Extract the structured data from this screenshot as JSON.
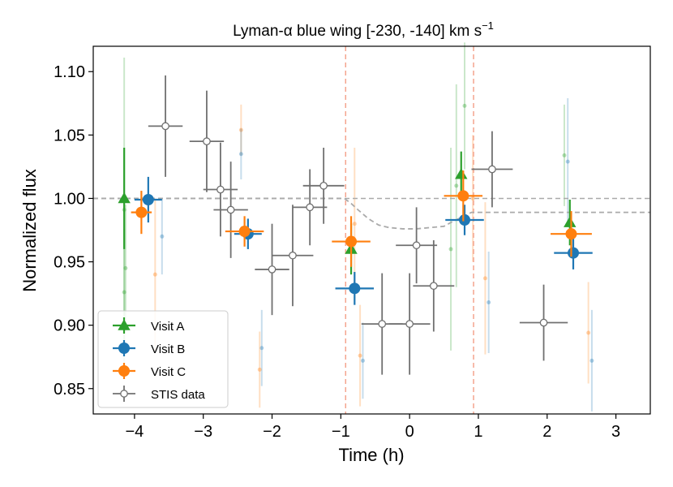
{
  "chart_data": {
    "type": "scatter",
    "title": "Lyman-α blue wing [-230, -140] km s",
    "title_superscript": "−1",
    "xlabel": "Time (h)",
    "ylabel": "Normalized flux",
    "xlim": [
      -4.6,
      3.5
    ],
    "ylim": [
      0.83,
      1.12
    ],
    "xticks": [
      -4,
      -3,
      -2,
      -1,
      0,
      1,
      2,
      3
    ],
    "xtick_labels": [
      "−4",
      "−3",
      "−2",
      "−1",
      "0",
      "1",
      "2",
      "3"
    ],
    "yticks": [
      0.85,
      0.9,
      0.95,
      1.0,
      1.05,
      1.1
    ],
    "ytick_labels": [
      "0.85",
      "0.90",
      "0.95",
      "1.00",
      "1.05",
      "1.10"
    ],
    "grid": false,
    "legend_position": "lower-left",
    "reference_line": {
      "y": 1.0,
      "style": "dashed",
      "color": "#aaaaaa"
    },
    "transit_markers": {
      "x": [
        -0.93,
        0.93
      ],
      "style": "dashed",
      "color": "#f4a48e"
    },
    "transit_model": {
      "color": "#aaaaaa",
      "x": [
        -4.6,
        -0.95,
        -0.85,
        -0.75,
        -0.6,
        -0.45,
        -0.3,
        -0.1,
        0.1,
        0.3,
        0.5,
        0.6,
        0.75,
        0.9,
        3.5
      ],
      "y": [
        1.0,
        1.0,
        0.996,
        0.991,
        0.984,
        0.979,
        0.977,
        0.976,
        0.976,
        0.977,
        0.978,
        0.981,
        0.985,
        0.989,
        0.989
      ]
    },
    "series": [
      {
        "name": "Visit A",
        "marker": "triangle",
        "color": "#2ca02c",
        "points": [
          {
            "x": -4.15,
            "y": 1.0,
            "yerr": 0.04,
            "xerr": 0.0
          },
          {
            "x": -0.85,
            "y": 0.96,
            "yerr": 0.02,
            "xerr": 0.0
          },
          {
            "x": 0.75,
            "y": 1.019,
            "yerr": 0.018,
            "xerr": 0.0
          },
          {
            "x": 2.33,
            "y": 0.981,
            "yerr": 0.018,
            "xerr": 0.0
          }
        ]
      },
      {
        "name": "Visit B",
        "marker": "circle",
        "color": "#1f77b4",
        "points": [
          {
            "x": -3.8,
            "y": 0.999,
            "yerr": 0.018,
            "xerr": 0.2
          },
          {
            "x": -2.35,
            "y": 0.972,
            "yerr": 0.012,
            "xerr": 0.2
          },
          {
            "x": -0.8,
            "y": 0.929,
            "yerr": 0.013,
            "xerr": 0.28
          },
          {
            "x": 0.8,
            "y": 0.983,
            "yerr": 0.012,
            "xerr": 0.28
          },
          {
            "x": 2.38,
            "y": 0.957,
            "yerr": 0.013,
            "xerr": 0.28
          }
        ]
      },
      {
        "name": "Visit C",
        "marker": "circle",
        "color": "#ff7f0e",
        "points": [
          {
            "x": -3.9,
            "y": 0.989,
            "yerr": 0.017,
            "xerr": 0.15
          },
          {
            "x": -2.4,
            "y": 0.974,
            "yerr": 0.012,
            "xerr": 0.28
          },
          {
            "x": -0.85,
            "y": 0.966,
            "yerr": 0.02,
            "xerr": 0.28
          },
          {
            "x": 0.78,
            "y": 1.002,
            "yerr": 0.02,
            "xerr": 0.28
          },
          {
            "x": 2.35,
            "y": 0.972,
            "yerr": 0.018,
            "xerr": 0.3
          }
        ]
      },
      {
        "name": "STIS data",
        "marker": "open-circle",
        "color": "#707070",
        "points": [
          {
            "x": -3.55,
            "y": 1.057,
            "yerr": 0.04,
            "xerr": 0.25
          },
          {
            "x": -2.95,
            "y": 1.045,
            "yerr": 0.04,
            "xerr": 0.25
          },
          {
            "x": -2.75,
            "y": 1.007,
            "yerr": 0.037,
            "xerr": 0.25
          },
          {
            "x": -2.6,
            "y": 0.991,
            "yerr": 0.038,
            "xerr": 0.25
          },
          {
            "x": -2.0,
            "y": 0.944,
            "yerr": 0.036,
            "xerr": 0.25
          },
          {
            "x": -1.7,
            "y": 0.955,
            "yerr": 0.04,
            "xerr": 0.3
          },
          {
            "x": -1.45,
            "y": 0.993,
            "yerr": 0.03,
            "xerr": 0.25
          },
          {
            "x": -1.25,
            "y": 1.01,
            "yerr": 0.03,
            "xerr": 0.3
          },
          {
            "x": -0.4,
            "y": 0.901,
            "yerr": 0.04,
            "xerr": 0.3
          },
          {
            "x": 0.0,
            "y": 0.901,
            "yerr": 0.04,
            "xerr": 0.3
          },
          {
            "x": 0.1,
            "y": 0.963,
            "yerr": 0.03,
            "xerr": 0.3
          },
          {
            "x": 0.35,
            "y": 0.931,
            "yerr": 0.036,
            "xerr": 0.3
          },
          {
            "x": 1.2,
            "y": 1.023,
            "yerr": 0.03,
            "xerr": 0.3
          },
          {
            "x": 1.95,
            "y": 0.902,
            "yerr": 0.03,
            "xerr": 0.35
          }
        ]
      }
    ],
    "faint_points": [
      {
        "x": -4.15,
        "y": 0.991,
        "yerr": 0.12,
        "color": "#2ca02c"
      },
      {
        "x": -4.13,
        "y": 0.945,
        "yerr": 0.05,
        "color": "#2ca02c"
      },
      {
        "x": -4.15,
        "y": 0.926,
        "yerr": 0.05,
        "color": "#2ca02c"
      },
      {
        "x": -3.6,
        "y": 0.97,
        "yerr": 0.03,
        "color": "#1f77b4"
      },
      {
        "x": -3.7,
        "y": 0.94,
        "yerr": 0.06,
        "color": "#ff7f0e"
      },
      {
        "x": -2.45,
        "y": 1.054,
        "yerr": 0.02,
        "color": "#ff7f0e"
      },
      {
        "x": -2.45,
        "y": 1.035,
        "yerr": 0.02,
        "color": "#1f77b4"
      },
      {
        "x": -2.15,
        "y": 0.882,
        "yerr": 0.03,
        "color": "#1f77b4"
      },
      {
        "x": -2.18,
        "y": 0.865,
        "yerr": 0.03,
        "color": "#ff7f0e"
      },
      {
        "x": -0.8,
        "y": 0.98,
        "yerr": 0.06,
        "color": "#ff7f0e"
      },
      {
        "x": -0.68,
        "y": 0.872,
        "yerr": 0.03,
        "color": "#1f77b4"
      },
      {
        "x": -0.72,
        "y": 0.876,
        "yerr": 0.04,
        "color": "#ff7f0e"
      },
      {
        "x": 0.6,
        "y": 0.96,
        "yerr": 0.08,
        "color": "#2ca02c"
      },
      {
        "x": 0.68,
        "y": 1.01,
        "yerr": 0.08,
        "color": "#2ca02c"
      },
      {
        "x": 0.8,
        "y": 1.073,
        "yerr": 0.05,
        "color": "#2ca02c"
      },
      {
        "x": 0.92,
        "y": 1.0,
        "yerr": 0.05,
        "color": "#ff7f0e"
      },
      {
        "x": 1.1,
        "y": 0.937,
        "yerr": 0.06,
        "color": "#ff7f0e"
      },
      {
        "x": 1.15,
        "y": 0.918,
        "yerr": 0.04,
        "color": "#1f77b4"
      },
      {
        "x": 2.25,
        "y": 1.034,
        "yerr": 0.04,
        "color": "#2ca02c"
      },
      {
        "x": 2.3,
        "y": 1.029,
        "yerr": 0.05,
        "color": "#1f77b4"
      },
      {
        "x": 2.6,
        "y": 0.894,
        "yerr": 0.04,
        "color": "#ff7f0e"
      },
      {
        "x": 2.65,
        "y": 0.872,
        "yerr": 0.04,
        "color": "#1f77b4"
      }
    ]
  }
}
